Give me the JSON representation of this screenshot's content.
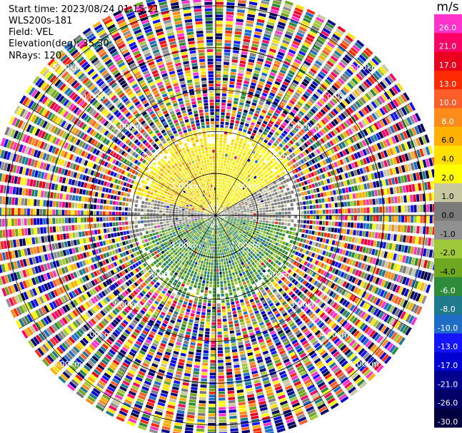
{
  "header": {
    "start_time_label": "Start time:",
    "start_time_value": "2023/08/24 01:15:21",
    "instrument": "WLS200s-181",
    "field_label": "Field:",
    "field_value": "VEL",
    "elevation_label": "Elevation(deg):",
    "elevation_value": "35.30",
    "nrays_label": "NRays:",
    "nrays_value": "120"
  },
  "chart_data": {
    "type": "heatmap",
    "projection": "polar PPI (plan position indicator)",
    "title": "",
    "field": "VEL",
    "elevation_deg": 35.3,
    "n_rays": 120,
    "range_rings_km": [
      1.0,
      2.0,
      3.0,
      4.0,
      5.0
    ],
    "ring_labels": [
      "1.00km",
      "2.00km",
      "3.00km",
      "4.00km",
      "5.00km"
    ],
    "max_range_km": 5.4,
    "spokes_deg": [
      0,
      30,
      60,
      90,
      120,
      150,
      180,
      210,
      240,
      270,
      300,
      330
    ],
    "grid": true,
    "coherent_region": {
      "max_range_km": 2.1,
      "sectors": [
        {
          "azimuth_deg": [
            285,
            360
          ],
          "velocity_ms": [
            2.0,
            6.0
          ],
          "description": "warm yellow/orange"
        },
        {
          "azimuth_deg": [
            0,
            60
          ],
          "velocity_ms": [
            2.0,
            4.0
          ],
          "description": "yellow"
        },
        {
          "azimuth_deg": [
            60,
            100
          ],
          "velocity_ms": [
            -1.0,
            1.0
          ],
          "description": "gray near zero"
        },
        {
          "azimuth_deg": [
            100,
            255
          ],
          "velocity_ms": [
            -8.0,
            -2.0
          ],
          "description": "green"
        },
        {
          "azimuth_deg": [
            255,
            285
          ],
          "velocity_ms": [
            -1.0,
            1.0
          ],
          "description": "gray near zero"
        }
      ],
      "outer_noise": "random colors across full scale beyond ~2 km"
    },
    "colorbar": {
      "unit": "m/s",
      "ticks": [
        "26.0",
        "21.0",
        "17.0",
        "13.0",
        "10.0",
        "8.0",
        "6.0",
        "4.0",
        "2.0",
        "1.0",
        "0.0",
        "-1.0",
        "-2.0",
        "-4.0",
        "-6.0",
        "-8.0",
        "-10.0",
        "-13.0",
        "-17.0",
        "-21.0",
        "-26.0",
        "-30.0"
      ],
      "colors": [
        "#ff33cc",
        "#ff0066",
        "#e8001e",
        "#ff2a00",
        "#ff5e2a",
        "#ff8c1a",
        "#ffb000",
        "#ffe000",
        "#ffff00",
        "#c8c8a0",
        "#7a7a7a",
        "#909090",
        "#9fc93a",
        "#6ea820",
        "#2e8b3a",
        "#1f7a8c",
        "#1e6ec8",
        "#1414ff",
        "#0000d0",
        "#000090",
        "#000066",
        "#000040"
      ]
    }
  }
}
